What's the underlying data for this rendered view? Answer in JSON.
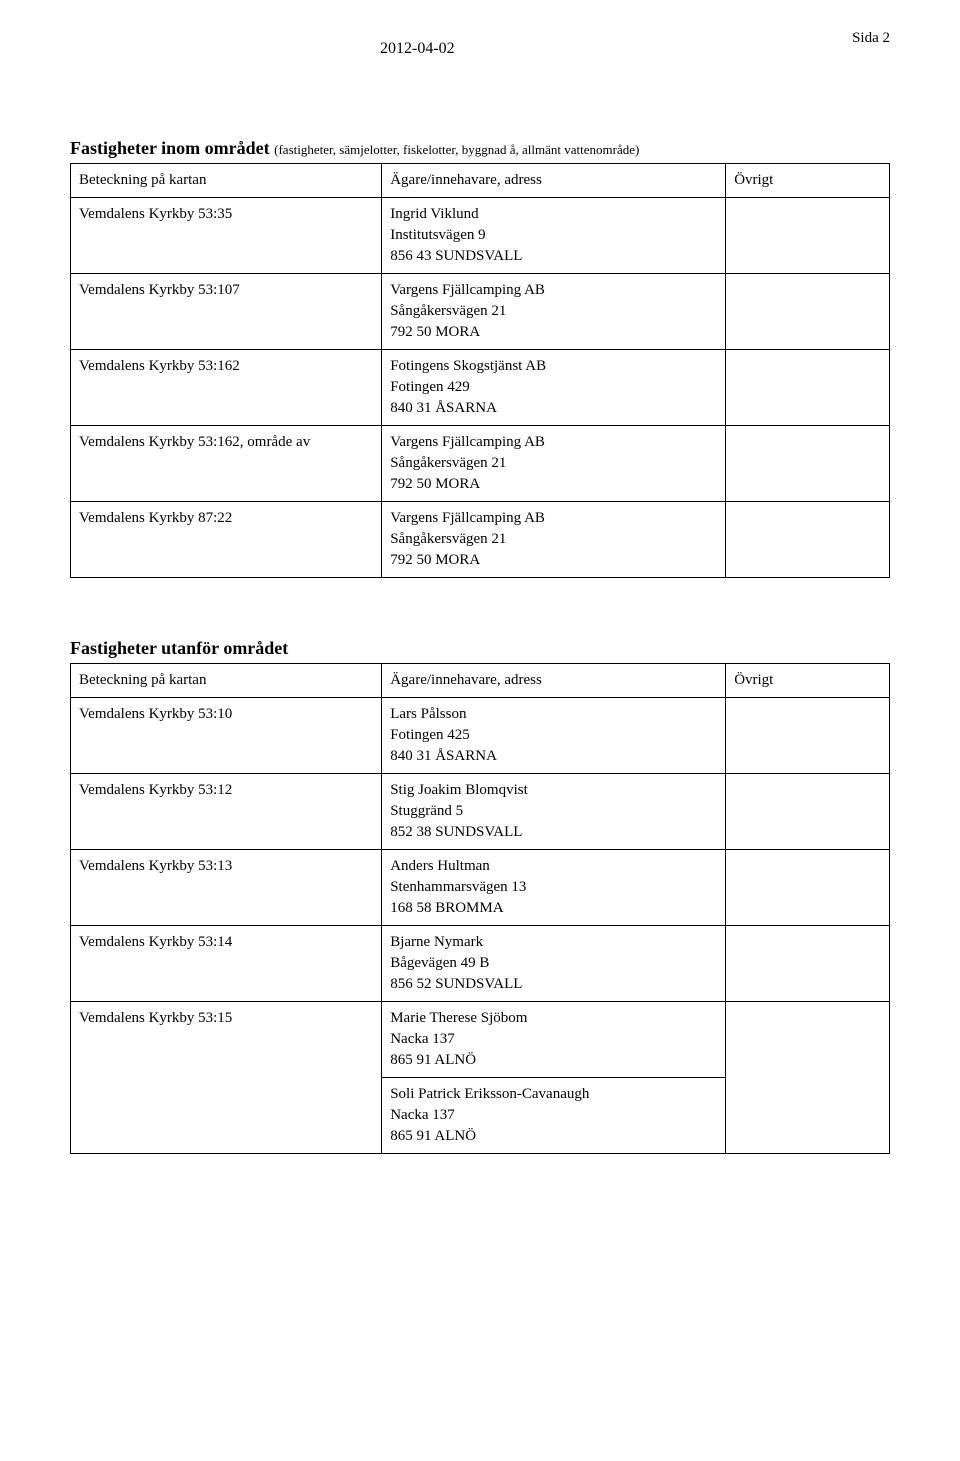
{
  "header": {
    "date": "2012-04-02",
    "page_label": "Sida 2"
  },
  "section1": {
    "title_main": "Fastigheter inom området",
    "title_sub": "(fastigheter, sämjelotter, fiskelotter, byggnad å, allmänt vattenområde)",
    "col1_header": "Beteckning på kartan",
    "col2_header": "Ägare/innehavare, adress",
    "col3_header": "Övrigt",
    "rows": [
      {
        "beteckning": "Vemdalens Kyrkby 53:35",
        "addr": [
          "Ingrid Viklund",
          "Institutsvägen 9",
          "856 43 SUNDSVALL"
        ]
      },
      {
        "beteckning": "Vemdalens Kyrkby 53:107",
        "addr": [
          "Vargens Fjällcamping AB",
          "Sångåkersvägen 21",
          "792 50 MORA"
        ]
      },
      {
        "beteckning": "Vemdalens Kyrkby 53:162",
        "addr": [
          "Fotingens Skogstjänst AB",
          "Fotingen 429",
          "840 31 ÅSARNA"
        ]
      },
      {
        "beteckning": "Vemdalens Kyrkby 53:162, område av",
        "addr": [
          "Vargens Fjällcamping AB",
          "Sångåkersvägen 21",
          "792 50 MORA"
        ]
      },
      {
        "beteckning": "Vemdalens Kyrkby 87:22",
        "addr": [
          "Vargens Fjällcamping AB",
          "Sångåkersvägen 21",
          "792 50 MORA"
        ]
      }
    ]
  },
  "section2": {
    "title_main": "Fastigheter utanför området",
    "col1_header": "Beteckning på kartan",
    "col2_header": "Ägare/innehavare, adress",
    "col3_header": "Övrigt",
    "rows": [
      {
        "beteckning": "Vemdalens Kyrkby 53:10",
        "addr": [
          "Lars Pålsson",
          "Fotingen 425",
          "840 31 ÅSARNA"
        ]
      },
      {
        "beteckning": "Vemdalens Kyrkby 53:12",
        "addr": [
          "Stig Joakim Blomqvist",
          "Stuggränd 5",
          "852 38 SUNDSVALL"
        ]
      },
      {
        "beteckning": "Vemdalens Kyrkby 53:13",
        "addr": [
          "Anders Hultman",
          "Stenhammarsvägen 13",
          "168 58 BROMMA"
        ]
      },
      {
        "beteckning": "Vemdalens Kyrkby 53:14",
        "addr": [
          "Bjarne Nymark",
          "Bågevägen 49 B",
          "856 52 SUNDSVALL"
        ]
      },
      {
        "beteckning": "Vemdalens Kyrkby 53:15",
        "addr": [
          "Marie Therese Sjöbom",
          "Nacka 137",
          "865 91 ALNÖ"
        ],
        "rowspan": 2
      },
      {
        "beteckning": "",
        "addr": [
          "Soli Patrick Eriksson-Cavanaugh",
          "Nacka 137",
          "865 91 ALNÖ"
        ]
      }
    ]
  }
}
